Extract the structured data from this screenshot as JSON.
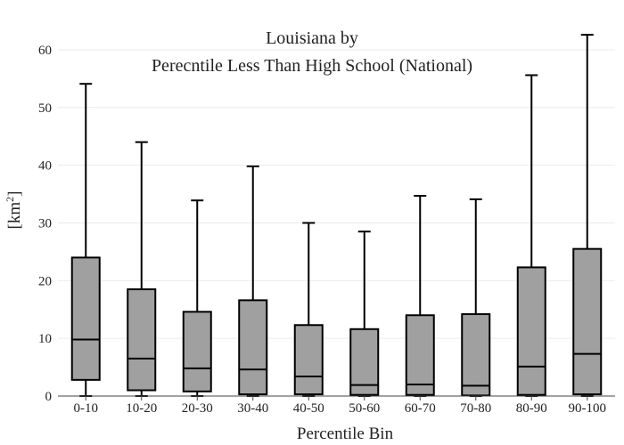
{
  "chart_data": {
    "type": "box",
    "title": "Louisiana  by",
    "subtitle": "Perecntile Less Than High School (National)",
    "xlabel": "Percentile Bin",
    "ylabel": "[km²]",
    "ylabel_base": "[km",
    "ylabel_sup": "2",
    "ylabel_end": "]",
    "ylim": [
      0,
      64
    ],
    "yticks": [
      0,
      10,
      20,
      30,
      40,
      50,
      60
    ],
    "box_color": "#a0a0a0",
    "grid": true,
    "categories": [
      "0-10",
      "10-20",
      "20-30",
      "30-40",
      "40-50",
      "50-60",
      "60-70",
      "70-80",
      "80-90",
      "90-100"
    ],
    "boxes": [
      {
        "min": 0,
        "q1": 2.8,
        "median": 9.8,
        "q3": 24.0,
        "max": 54.1
      },
      {
        "min": 0,
        "q1": 1.0,
        "median": 6.5,
        "q3": 18.5,
        "max": 44.0
      },
      {
        "min": 0,
        "q1": 0.8,
        "median": 4.8,
        "q3": 14.6,
        "max": 33.9
      },
      {
        "min": 0,
        "q1": 0.3,
        "median": 4.6,
        "q3": 16.6,
        "max": 39.8
      },
      {
        "min": 0,
        "q1": 0.3,
        "median": 3.4,
        "q3": 12.3,
        "max": 30.0
      },
      {
        "min": 0,
        "q1": 0.2,
        "median": 1.9,
        "q3": 11.6,
        "max": 28.5
      },
      {
        "min": 0,
        "q1": 0.2,
        "median": 2.0,
        "q3": 14.0,
        "max": 34.7
      },
      {
        "min": 0,
        "q1": 0.1,
        "median": 1.8,
        "q3": 14.2,
        "max": 34.1
      },
      {
        "min": 0,
        "q1": 0.2,
        "median": 5.1,
        "q3": 22.3,
        "max": 55.6
      },
      {
        "min": 0,
        "q1": 0.3,
        "median": 7.3,
        "q3": 25.5,
        "max": 62.6
      }
    ]
  }
}
